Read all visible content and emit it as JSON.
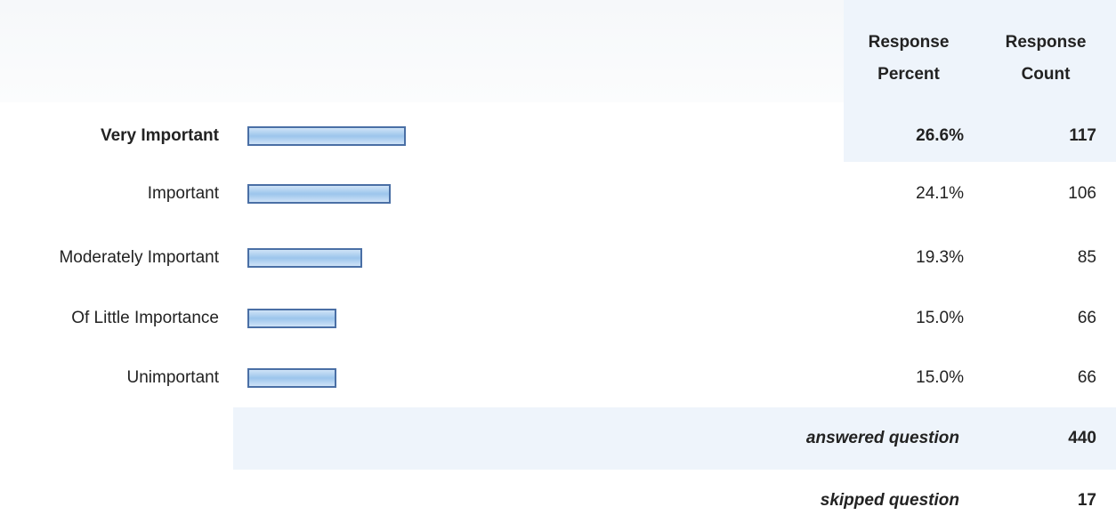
{
  "chart_data": {
    "type": "bar",
    "headers": [
      "Response Percent",
      "Response Count"
    ],
    "categories": [
      "Very Important",
      "Important",
      "Moderately Important",
      "Of Little Importance",
      "Unimportant"
    ],
    "values": [
      26.6,
      24.1,
      19.3,
      15.0,
      15.0
    ],
    "value_labels": [
      "26.6%",
      "24.1%",
      "19.3%",
      "15.0%",
      "15.0%"
    ],
    "counts": [
      117,
      106,
      85,
      66,
      66
    ],
    "answered": {
      "label": "answered question",
      "value": 440
    },
    "skipped": {
      "label": "skipped question",
      "value": 17
    }
  }
}
